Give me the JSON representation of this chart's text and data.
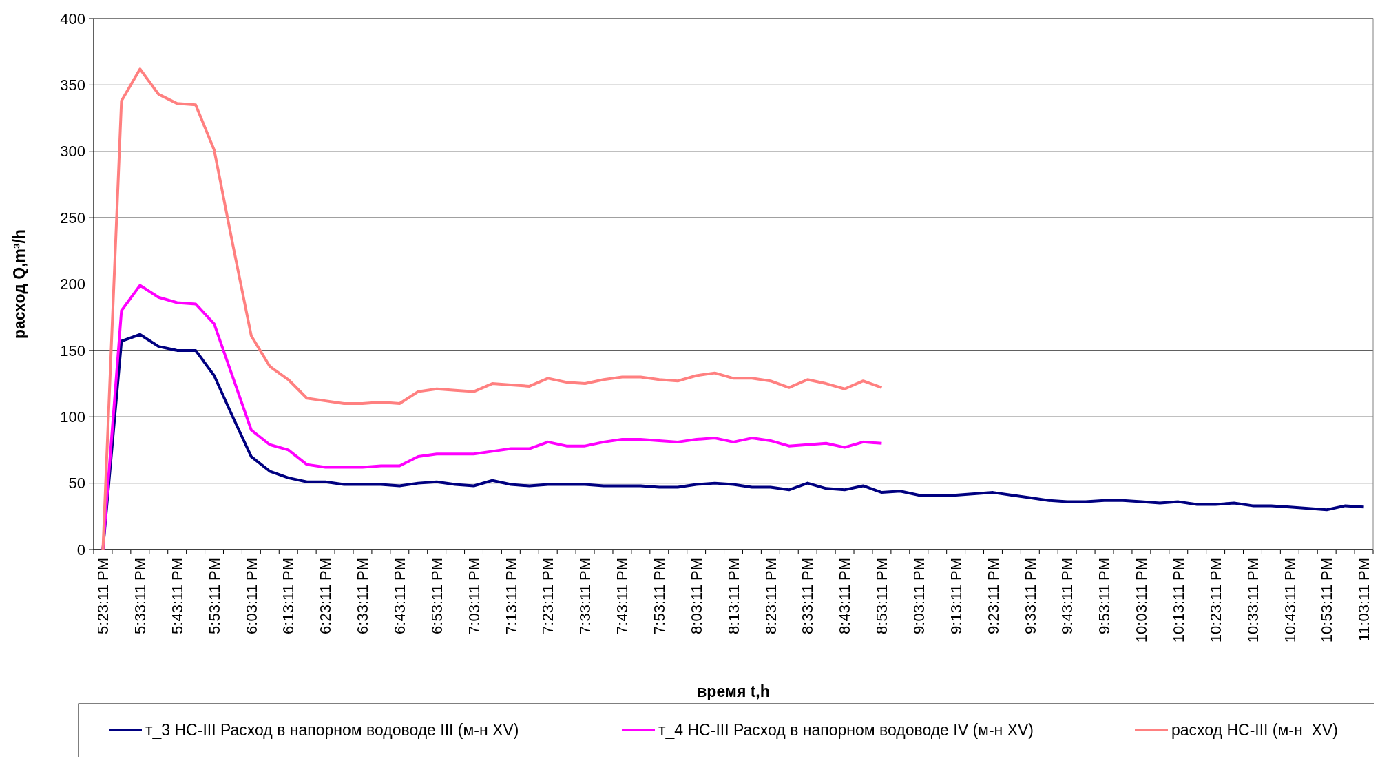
{
  "chart_data": {
    "type": "line",
    "xlabel": "время t,h",
    "ylabel": "расход Q,m³/h",
    "categories": [
      "5:23:11 PM",
      null,
      "5:33:11 PM",
      null,
      "5:43:11 PM",
      null,
      "5:53:11 PM",
      null,
      "6:03:11 PM",
      null,
      "6:13:11 PM",
      null,
      "6:23:11 PM",
      null,
      "6:33:11 PM",
      null,
      "6:43:11 PM",
      null,
      "6:53:11 PM",
      null,
      "7:03:11 PM",
      null,
      "7:13:11 PM",
      null,
      "7:23:11 PM",
      null,
      "7:33:11 PM",
      null,
      "7:43:11 PM",
      null,
      "7:53:11 PM",
      null,
      "8:03:11 PM",
      null,
      "8:13:11 PM",
      null,
      "8:23:11 PM",
      null,
      "8:33:11 PM",
      null,
      "8:43:11 PM",
      null,
      "8:53:11 PM",
      null,
      "9:03:11 PM",
      null,
      "9:13:11 PM",
      null,
      "9:23:11 PM",
      null,
      "9:33:11 PM",
      null,
      "9:43:11 PM",
      null,
      "9:53:11 PM",
      null,
      "10:03:11 PM",
      null,
      "10:13:11 PM",
      null,
      "10:23:11 PM",
      null,
      "10:33:11 PM",
      null,
      "10:43:11 PM",
      null,
      "10:53:11 PM",
      null,
      "11:03:11 PM"
    ],
    "series": [
      {
        "name": "т_3 НС-III Расход в напорном водоводе III (м-н XV)",
        "color": "#000080",
        "values": [
          0,
          157,
          162,
          153,
          150,
          150,
          131,
          100,
          70,
          59,
          54,
          51,
          51,
          49,
          49,
          49,
          48,
          50,
          51,
          49,
          48,
          52,
          49,
          48,
          49,
          49,
          49,
          48,
          48,
          48,
          47,
          47,
          49,
          50,
          49,
          47,
          47,
          45,
          50,
          46,
          45,
          48,
          43,
          44,
          41,
          41,
          41,
          42,
          43,
          41,
          39,
          37,
          36,
          36,
          37,
          37,
          36,
          35,
          36,
          34,
          34,
          35,
          33,
          33,
          32,
          31,
          30,
          33,
          32
        ]
      },
      {
        "name": "т_4 НС-III Расход в напорном водоводе IV (м-н XV)",
        "color": "#ff00ff",
        "values": [
          0,
          180,
          199,
          190,
          186,
          185,
          170,
          130,
          90,
          79,
          75,
          64,
          62,
          62,
          62,
          63,
          63,
          70,
          72,
          72,
          72,
          74,
          76,
          76,
          81,
          78,
          78,
          81,
          83,
          83,
          82,
          81,
          83,
          84,
          81,
          84,
          82,
          78,
          79,
          80,
          77,
          81,
          80,
          null,
          null,
          null,
          null,
          null,
          null,
          null,
          null,
          null,
          null,
          null,
          null,
          null,
          null,
          null,
          null,
          null,
          null,
          null,
          null,
          null,
          null,
          null,
          null,
          null,
          null
        ]
      },
      {
        "name": "расход НС-III (м-н  XV)",
        "color": "#ff8080",
        "values": [
          0,
          338,
          362,
          343,
          336,
          335,
          301,
          230,
          161,
          138,
          128,
          114,
          112,
          110,
          110,
          111,
          110,
          119,
          121,
          120,
          119,
          125,
          124,
          123,
          129,
          126,
          125,
          128,
          130,
          130,
          128,
          127,
          131,
          133,
          129,
          129,
          127,
          122,
          128,
          125,
          121,
          127,
          122,
          null,
          null,
          null,
          null,
          null,
          null,
          null,
          null,
          null,
          null,
          null,
          null,
          null,
          null,
          null,
          null,
          null,
          null,
          null,
          null,
          null,
          null,
          null,
          null,
          null,
          null
        ]
      }
    ],
    "ylim": [
      0,
      400
    ],
    "yticks": [
      0,
      50,
      100,
      150,
      200,
      250,
      300,
      350,
      400
    ],
    "grid": "y",
    "legend": "bottom",
    "marker": "none",
    "line_style": "solid"
  }
}
